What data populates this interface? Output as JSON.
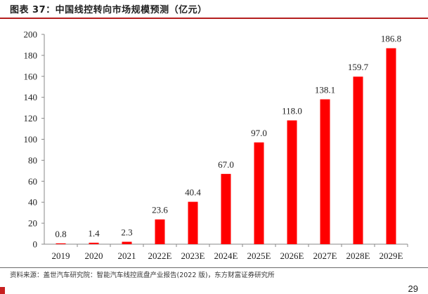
{
  "header": {
    "title": "图表 37：中国线控转向市场规模预测（亿元）"
  },
  "chart_data": {
    "type": "bar",
    "categories": [
      "2019",
      "2020",
      "2021",
      "2022E",
      "2023E",
      "2024E",
      "2025E",
      "2026E",
      "2027E",
      "2028E",
      "2029E"
    ],
    "values": [
      0.8,
      1.4,
      2.3,
      23.6,
      40.4,
      67.0,
      97.0,
      118.0,
      138.1,
      159.7,
      186.8
    ],
    "data_labels": [
      "0.8",
      "1.4",
      "2.3",
      "23.6",
      "40.4",
      "67.0",
      "97.0",
      "118.0",
      "138.1",
      "159.7",
      "186.8"
    ],
    "yticks": [
      "0",
      "20",
      "40",
      "60",
      "80",
      "100",
      "120",
      "140",
      "160",
      "180",
      "200"
    ],
    "ylim": [
      0,
      200
    ],
    "grid": false,
    "legend": "none",
    "bar_color": "#ff0000"
  },
  "footer": {
    "source": "资料来源：盖世汽车研究院：智能汽车线控底盘产业报告(2022 版)，东方财富证券研究所",
    "page_number": "29"
  },
  "colors": {
    "accent": "#b41e1e",
    "bar": "#ff0000"
  }
}
